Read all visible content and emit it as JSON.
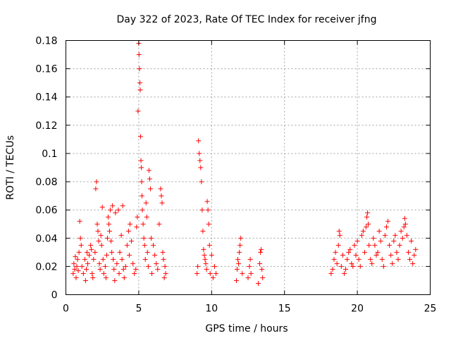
{
  "chart_data": {
    "type": "scatter",
    "title": "Day 322 of 2023, Rate Of TEC Index for receiver jfng",
    "xlabel": "GPS time / hours",
    "ylabel": "ROTI / TECUs",
    "xlim": [
      0,
      25
    ],
    "ylim": [
      0,
      0.18
    ],
    "xticks": [
      0,
      5,
      10,
      15,
      20,
      25
    ],
    "xtick_labels": [
      "0",
      "5",
      "10",
      "15",
      "20",
      "25"
    ],
    "yticks": [
      0,
      0.02,
      0.04,
      0.06,
      0.08,
      0.1,
      0.12,
      0.14,
      0.16,
      0.18
    ],
    "ytick_labels": [
      "0",
      "0.02",
      "0.04",
      "0.06",
      "0.08",
      "0.1",
      "0.12",
      "0.14",
      "0.16",
      "0.18"
    ],
    "grid": true,
    "marker": "+",
    "color": "#ff0000",
    "series": [
      {
        "name": "ROTI",
        "points": [
          [
            0.5,
            0.015
          ],
          [
            0.55,
            0.022
          ],
          [
            0.6,
            0.018
          ],
          [
            0.65,
            0.027
          ],
          [
            0.7,
            0.012
          ],
          [
            0.75,
            0.02
          ],
          [
            0.8,
            0.025
          ],
          [
            0.85,
            0.017
          ],
          [
            0.9,
            0.03
          ],
          [
            0.95,
            0.052
          ],
          [
            1.0,
            0.04
          ],
          [
            1.05,
            0.035
          ],
          [
            1.1,
            0.02
          ],
          [
            1.2,
            0.015
          ],
          [
            1.3,
            0.025
          ],
          [
            1.35,
            0.01
          ],
          [
            1.4,
            0.018
          ],
          [
            1.45,
            0.03
          ],
          [
            1.5,
            0.022
          ],
          [
            1.6,
            0.028
          ],
          [
            1.7,
            0.035
          ],
          [
            1.75,
            0.032
          ],
          [
            1.8,
            0.015
          ],
          [
            1.85,
            0.012
          ],
          [
            1.9,
            0.025
          ],
          [
            2.0,
            0.03
          ],
          [
            2.05,
            0.075
          ],
          [
            2.1,
            0.08
          ],
          [
            2.15,
            0.05
          ],
          [
            2.2,
            0.045
          ],
          [
            2.25,
            0.038
          ],
          [
            2.3,
            0.022
          ],
          [
            2.35,
            0.018
          ],
          [
            2.4,
            0.042
          ],
          [
            2.45,
            0.035
          ],
          [
            2.5,
            0.062
          ],
          [
            2.55,
            0.025
          ],
          [
            2.6,
            0.015
          ],
          [
            2.7,
            0.02
          ],
          [
            2.75,
            0.012
          ],
          [
            2.8,
            0.028
          ],
          [
            2.85,
            0.04
          ],
          [
            2.9,
            0.055
          ],
          [
            2.95,
            0.05
          ],
          [
            3.0,
            0.045
          ],
          [
            3.05,
            0.06
          ],
          [
            3.1,
            0.038
          ],
          [
            3.15,
            0.03
          ],
          [
            3.2,
            0.063
          ],
          [
            3.25,
            0.025
          ],
          [
            3.3,
            0.018
          ],
          [
            3.35,
            0.01
          ],
          [
            3.4,
            0.058
          ],
          [
            3.5,
            0.022
          ],
          [
            3.6,
            0.06
          ],
          [
            3.65,
            0.015
          ],
          [
            3.7,
            0.03
          ],
          [
            3.8,
            0.042
          ],
          [
            3.85,
            0.025
          ],
          [
            3.9,
            0.063
          ],
          [
            3.95,
            0.018
          ],
          [
            4.0,
            0.012
          ],
          [
            4.1,
            0.02
          ],
          [
            4.2,
            0.035
          ],
          [
            4.3,
            0.045
          ],
          [
            4.35,
            0.028
          ],
          [
            4.4,
            0.05
          ],
          [
            4.5,
            0.038
          ],
          [
            4.6,
            0.022
          ],
          [
            4.7,
            0.015
          ],
          [
            4.8,
            0.018
          ],
          [
            4.85,
            0.048
          ],
          [
            4.9,
            0.055
          ],
          [
            4.95,
            0.13
          ],
          [
            5.0,
            0.178
          ],
          [
            5.02,
            0.17
          ],
          [
            5.05,
            0.16
          ],
          [
            5.08,
            0.15
          ],
          [
            5.1,
            0.145
          ],
          [
            5.12,
            0.112
          ],
          [
            5.15,
            0.095
          ],
          [
            5.18,
            0.09
          ],
          [
            5.2,
            0.08
          ],
          [
            5.22,
            0.07
          ],
          [
            5.25,
            0.06
          ],
          [
            5.3,
            0.05
          ],
          [
            5.35,
            0.04
          ],
          [
            5.4,
            0.035
          ],
          [
            5.45,
            0.025
          ],
          [
            5.5,
            0.065
          ],
          [
            5.55,
            0.055
          ],
          [
            5.6,
            0.03
          ],
          [
            5.65,
            0.02
          ],
          [
            5.7,
            0.088
          ],
          [
            5.75,
            0.082
          ],
          [
            5.8,
            0.075
          ],
          [
            5.85,
            0.04
          ],
          [
            5.9,
            0.015
          ],
          [
            6.0,
            0.035
          ],
          [
            6.1,
            0.028
          ],
          [
            6.2,
            0.022
          ],
          [
            6.3,
            0.018
          ],
          [
            6.4,
            0.05
          ],
          [
            6.5,
            0.075
          ],
          [
            6.55,
            0.07
          ],
          [
            6.6,
            0.065
          ],
          [
            6.65,
            0.03
          ],
          [
            6.7,
            0.025
          ],
          [
            6.75,
            0.012
          ],
          [
            6.8,
            0.02
          ],
          [
            6.85,
            0.015
          ],
          [
            9.0,
            0.015
          ],
          [
            9.05,
            0.02
          ],
          [
            9.1,
            0.109
          ],
          [
            9.15,
            0.1
          ],
          [
            9.2,
            0.095
          ],
          [
            9.25,
            0.09
          ],
          [
            9.3,
            0.08
          ],
          [
            9.35,
            0.06
          ],
          [
            9.4,
            0.045
          ],
          [
            9.45,
            0.032
          ],
          [
            9.5,
            0.028
          ],
          [
            9.55,
            0.025
          ],
          [
            9.6,
            0.022
          ],
          [
            9.65,
            0.018
          ],
          [
            9.7,
            0.066
          ],
          [
            9.75,
            0.06
          ],
          [
            9.8,
            0.05
          ],
          [
            9.85,
            0.035
          ],
          [
            9.9,
            0.015
          ],
          [
            10.0,
            0.028
          ],
          [
            10.1,
            0.012
          ],
          [
            10.2,
            0.02
          ],
          [
            10.3,
            0.015
          ],
          [
            11.7,
            0.01
          ],
          [
            11.75,
            0.018
          ],
          [
            11.8,
            0.025
          ],
          [
            11.85,
            0.022
          ],
          [
            11.9,
            0.03
          ],
          [
            11.95,
            0.035
          ],
          [
            12.0,
            0.04
          ],
          [
            12.1,
            0.015
          ],
          [
            12.5,
            0.012
          ],
          [
            12.6,
            0.02
          ],
          [
            12.65,
            0.025
          ],
          [
            12.7,
            0.015
          ],
          [
            13.2,
            0.008
          ],
          [
            13.3,
            0.022
          ],
          [
            13.35,
            0.03
          ],
          [
            13.4,
            0.032
          ],
          [
            13.45,
            0.018
          ],
          [
            13.5,
            0.012
          ],
          [
            18.2,
            0.015
          ],
          [
            18.3,
            0.018
          ],
          [
            18.4,
            0.025
          ],
          [
            18.5,
            0.03
          ],
          [
            18.6,
            0.022
          ],
          [
            18.7,
            0.035
          ],
          [
            18.75,
            0.045
          ],
          [
            18.8,
            0.042
          ],
          [
            18.9,
            0.02
          ],
          [
            19.0,
            0.028
          ],
          [
            19.1,
            0.015
          ],
          [
            19.2,
            0.018
          ],
          [
            19.3,
            0.025
          ],
          [
            19.4,
            0.03
          ],
          [
            19.5,
            0.032
          ],
          [
            19.6,
            0.022
          ],
          [
            19.7,
            0.02
          ],
          [
            19.8,
            0.035
          ],
          [
            19.9,
            0.028
          ],
          [
            20.0,
            0.038
          ],
          [
            20.1,
            0.025
          ],
          [
            20.2,
            0.02
          ],
          [
            20.3,
            0.042
          ],
          [
            20.4,
            0.045
          ],
          [
            20.5,
            0.03
          ],
          [
            20.6,
            0.048
          ],
          [
            20.65,
            0.055
          ],
          [
            20.7,
            0.058
          ],
          [
            20.75,
            0.05
          ],
          [
            20.8,
            0.035
          ],
          [
            20.9,
            0.025
          ],
          [
            21.0,
            0.022
          ],
          [
            21.1,
            0.04
          ],
          [
            21.2,
            0.035
          ],
          [
            21.3,
            0.028
          ],
          [
            21.4,
            0.03
          ],
          [
            21.5,
            0.045
          ],
          [
            21.6,
            0.038
          ],
          [
            21.7,
            0.025
          ],
          [
            21.8,
            0.02
          ],
          [
            21.9,
            0.042
          ],
          [
            22.0,
            0.048
          ],
          [
            22.1,
            0.052
          ],
          [
            22.2,
            0.035
          ],
          [
            22.3,
            0.028
          ],
          [
            22.4,
            0.022
          ],
          [
            22.5,
            0.038
          ],
          [
            22.6,
            0.042
          ],
          [
            22.7,
            0.03
          ],
          [
            22.8,
            0.025
          ],
          [
            22.9,
            0.035
          ],
          [
            23.0,
            0.045
          ],
          [
            23.1,
            0.04
          ],
          [
            23.2,
            0.048
          ],
          [
            23.25,
            0.054
          ],
          [
            23.3,
            0.05
          ],
          [
            23.4,
            0.042
          ],
          [
            23.5,
            0.03
          ],
          [
            23.6,
            0.025
          ],
          [
            23.7,
            0.038
          ],
          [
            23.8,
            0.022
          ],
          [
            23.9,
            0.028
          ],
          [
            24.0,
            0.032
          ]
        ]
      }
    ]
  }
}
